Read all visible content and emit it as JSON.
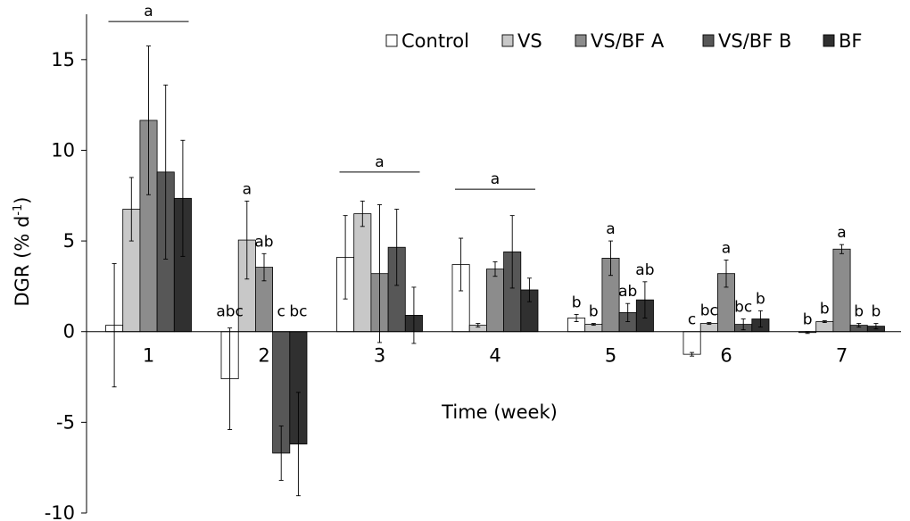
{
  "chart_data": {
    "type": "bar",
    "xlabel": "Time (week)",
    "ylabel": "DGR (% d",
    "ylabel_sup": "-1",
    "ylabel_close": ")",
    "ylim": [
      -10,
      17.5
    ],
    "yticks": [
      -10,
      -5,
      0,
      5,
      10,
      15
    ],
    "ytick_labels": [
      "-10",
      "-5",
      "0",
      "5",
      "10",
      "15"
    ],
    "categories": [
      "1",
      "2",
      "3",
      "4",
      "5",
      "6",
      "7"
    ],
    "legend_position": "top-right",
    "series": [
      {
        "name": "Control",
        "color": "#ffffff",
        "values": [
          0.35,
          -2.6,
          4.1,
          3.7,
          0.75,
          -1.25,
          -0.05
        ],
        "errors": [
          3.4,
          2.8,
          2.3,
          1.45,
          0.2,
          0.1,
          0.05
        ]
      },
      {
        "name": "VS",
        "color": "#c8c8c8",
        "values": [
          6.75,
          5.05,
          6.5,
          0.35,
          0.4,
          0.45,
          0.55
        ],
        "errors": [
          1.75,
          2.15,
          0.7,
          0.1,
          0.05,
          0.05,
          0.05
        ]
      },
      {
        "name": "VS/BF A",
        "color": "#8c8c8c",
        "values": [
          11.65,
          3.55,
          3.2,
          3.45,
          4.05,
          3.2,
          4.55
        ],
        "errors": [
          4.1,
          0.75,
          3.8,
          0.4,
          0.95,
          0.75,
          0.25
        ]
      },
      {
        "name": "VS/BF B",
        "color": "#575757",
        "values": [
          8.8,
          -6.7,
          4.65,
          4.4,
          1.05,
          0.4,
          0.35
        ],
        "errors": [
          4.8,
          1.5,
          2.1,
          2.0,
          0.5,
          0.3,
          0.1
        ]
      },
      {
        "name": "BF",
        "color": "#303030",
        "values": [
          7.35,
          -6.2,
          0.9,
          2.3,
          1.75,
          0.7,
          0.3
        ],
        "errors": [
          3.2,
          2.85,
          1.55,
          0.65,
          1.0,
          0.45,
          0.15
        ]
      }
    ],
    "annotations": {
      "group_letters": [
        {
          "category": "1",
          "text": "a",
          "y_data": 17.1
        },
        {
          "category": "3",
          "text": "a",
          "y_data": 8.8
        },
        {
          "category": "4",
          "text": "a",
          "y_data": 7.85
        }
      ],
      "bar_letters": [
        {
          "category": "2",
          "series": "Control",
          "text": "abc"
        },
        {
          "category": "2",
          "series": "VS",
          "text": "a"
        },
        {
          "category": "2",
          "series": "VS/BF A",
          "text": "ab"
        },
        {
          "category": "2",
          "series": "VS/BF B",
          "text": "c"
        },
        {
          "category": "2",
          "series": "BF",
          "text": "bc"
        },
        {
          "category": "5",
          "series": "Control",
          "text": "b"
        },
        {
          "category": "5",
          "series": "VS",
          "text": "b"
        },
        {
          "category": "5",
          "series": "VS/BF A",
          "text": "a"
        },
        {
          "category": "5",
          "series": "VS/BF B",
          "text": "ab"
        },
        {
          "category": "5",
          "series": "BF",
          "text": "ab"
        },
        {
          "category": "6",
          "series": "Control",
          "text": "c"
        },
        {
          "category": "6",
          "series": "VS",
          "text": "bc"
        },
        {
          "category": "6",
          "series": "VS/BF A",
          "text": "a"
        },
        {
          "category": "6",
          "series": "VS/BF B",
          "text": "bc"
        },
        {
          "category": "6",
          "series": "BF",
          "text": "b"
        },
        {
          "category": "7",
          "series": "Control",
          "text": "b"
        },
        {
          "category": "7",
          "series": "VS",
          "text": "b"
        },
        {
          "category": "7",
          "series": "VS/BF A",
          "text": "a"
        },
        {
          "category": "7",
          "series": "VS/BF B",
          "text": "b"
        },
        {
          "category": "7",
          "series": "BF",
          "text": "b"
        }
      ]
    }
  }
}
